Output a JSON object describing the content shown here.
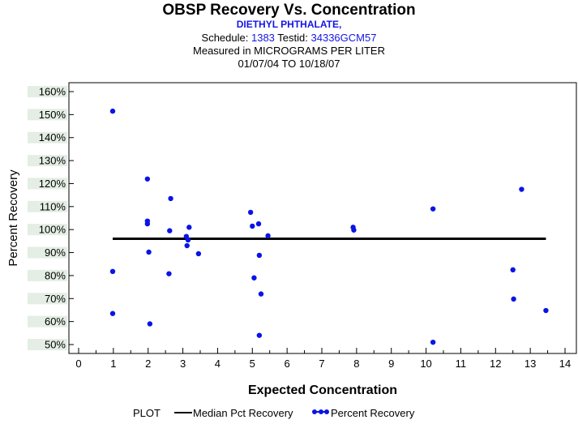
{
  "header": {
    "title": "OBSP Recovery Vs. Concentration",
    "compound": "DIETHYL PHTHALATE,",
    "schedule_label": "Schedule:",
    "schedule_value": "1383",
    "testid_label": "Testid:",
    "testid_value": "34336GCM57",
    "measured": "Measured in  MICROGRAMS PER LITER",
    "date_range": "01/07/04 TO 10/18/07"
  },
  "legend": {
    "title": "PLOT",
    "median_label": "Median Pct Recovery",
    "points_label": "Percent Recovery"
  },
  "colors": {
    "points": "#0a14e6",
    "median": "#000000",
    "band": "#e4eee4"
  },
  "chart_data": {
    "type": "scatter",
    "title": "OBSP Recovery Vs. Concentration",
    "xlabel": "Expected Concentration",
    "ylabel": "Percent Recovery",
    "xlim": [
      0,
      14
    ],
    "ylim": [
      48,
      161
    ],
    "x_ticks": [
      0,
      1,
      2,
      3,
      4,
      5,
      6,
      7,
      8,
      9,
      10,
      11,
      12,
      13,
      14
    ],
    "y_ticks": [
      50,
      60,
      70,
      80,
      90,
      100,
      110,
      120,
      130,
      140,
      150,
      160
    ],
    "y_tick_labels": [
      "50%",
      "60%",
      "70%",
      "80%",
      "90%",
      "100%",
      "110%",
      "120%",
      "130%",
      "140%",
      "150%",
      "160%"
    ],
    "median": {
      "name": "Median Pct Recovery",
      "value": 96,
      "x_range": [
        0.98,
        13.45
      ]
    },
    "series": [
      {
        "name": "Percent Recovery",
        "points": [
          [
            0.98,
            151.5
          ],
          [
            0.98,
            81.8
          ],
          [
            0.98,
            63.5
          ],
          [
            1.98,
            122
          ],
          [
            1.98,
            103.7
          ],
          [
            1.98,
            102.5
          ],
          [
            2.02,
            90.2
          ],
          [
            2.05,
            59
          ],
          [
            2.65,
            113.5
          ],
          [
            2.62,
            99.5
          ],
          [
            2.6,
            80.8
          ],
          [
            3.1,
            97
          ],
          [
            3.12,
            93
          ],
          [
            3.15,
            95.5
          ],
          [
            3.18,
            101
          ],
          [
            3.45,
            89.5
          ],
          [
            4.95,
            107.5
          ],
          [
            5.0,
            101.5
          ],
          [
            5.05,
            79
          ],
          [
            5.18,
            102.5
          ],
          [
            5.2,
            88.8
          ],
          [
            5.2,
            54
          ],
          [
            5.25,
            72
          ],
          [
            5.45,
            97.3
          ],
          [
            7.9,
            101
          ],
          [
            7.92,
            99.8
          ],
          [
            10.2,
            109
          ],
          [
            10.2,
            51
          ],
          [
            12.5,
            82.5
          ],
          [
            12.52,
            69.8
          ],
          [
            12.75,
            117.5
          ],
          [
            13.45,
            64.8
          ]
        ]
      }
    ]
  }
}
